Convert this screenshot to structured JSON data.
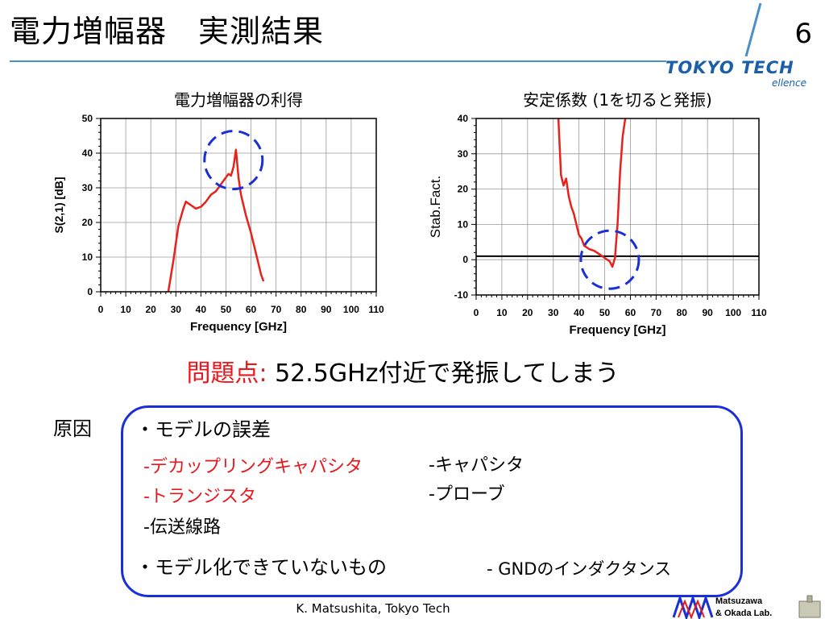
{
  "slide": {
    "title": "電力増幅器　実測結果",
    "page_number": "6",
    "logo_text": "TOKYO TECH",
    "logo_sub": "ellence",
    "footer": "K. Matsushita, Tokyo Tech",
    "lab_logo_line1": "Matsuzawa",
    "lab_logo_line2": "& Okada Lab."
  },
  "problem": {
    "label": "問題点",
    "colon": ":",
    "text": "52.5GHz付近で発振してしまう"
  },
  "causes": {
    "label": "原因",
    "model_error_heading": "・モデルの誤差",
    "items_left": [
      {
        "text": "-デカップリングキャパシタ",
        "highlight": true
      },
      {
        "text": "-トランジスタ",
        "highlight": true
      },
      {
        "text": "-伝送線路",
        "highlight": false
      }
    ],
    "items_right": [
      {
        "text": "-キャパシタ"
      },
      {
        "text": "-プローブ"
      }
    ],
    "unmodeled_heading": "・モデル化できていないもの",
    "unmodeled_item": "- GNDのインダクタンス"
  },
  "chart_data": [
    {
      "type": "line",
      "title": "電力増幅器の利得",
      "xlabel": "Frequency [GHz]",
      "ylabel": "S(2,1) [dB]",
      "xlim": [
        0,
        110
      ],
      "ylim": [
        0,
        50
      ],
      "xticks": [
        0,
        10,
        20,
        30,
        40,
        50,
        60,
        70,
        80,
        90,
        100,
        110
      ],
      "yticks": [
        0,
        10,
        20,
        30,
        40,
        50
      ],
      "grid": true,
      "color": "#e8211c",
      "series": [
        {
          "x": [
            27,
            29,
            31,
            33,
            34,
            36,
            38,
            40,
            42,
            44,
            46,
            48,
            49,
            50,
            51,
            52,
            53,
            54,
            55,
            56,
            58,
            60,
            62,
            64,
            65
          ],
          "y": [
            0,
            9,
            19,
            24,
            26,
            25,
            24,
            24.5,
            26,
            28,
            29,
            31,
            32,
            33,
            34,
            33.5,
            36,
            41,
            33,
            28,
            22,
            17,
            11,
            5,
            3
          ]
        }
      ],
      "annotation": {
        "shape": "dashed-circle",
        "x": 53,
        "y": 38,
        "color": "#1a2fd6"
      }
    },
    {
      "type": "line",
      "title": "安定係数 (1を切ると発振)",
      "xlabel": "Frequency [GHz]",
      "ylabel": "Stab.Fact.",
      "xlim": [
        0,
        110
      ],
      "ylim": [
        -10,
        40
      ],
      "xticks": [
        0,
        10,
        20,
        30,
        40,
        50,
        60,
        70,
        80,
        90,
        100,
        110
      ],
      "yticks": [
        -10,
        0,
        10,
        20,
        30,
        40
      ],
      "grid": true,
      "reference_line": 1,
      "color": "#e8211c",
      "series": [
        {
          "x": [
            32,
            33,
            34,
            35,
            36,
            37,
            38,
            39,
            40,
            41,
            42,
            44,
            46,
            48,
            50,
            52,
            53,
            54,
            55,
            56,
            57,
            58
          ],
          "y": [
            40,
            24,
            21,
            23,
            18,
            15,
            13,
            10,
            7,
            6,
            4,
            3,
            2.5,
            1.5,
            0.5,
            -0.5,
            -2,
            0.5,
            10,
            25,
            35,
            40
          ]
        }
      ],
      "annotation": {
        "shape": "dashed-circle",
        "x": 52,
        "y": 0,
        "color": "#1a2fd6"
      }
    }
  ]
}
